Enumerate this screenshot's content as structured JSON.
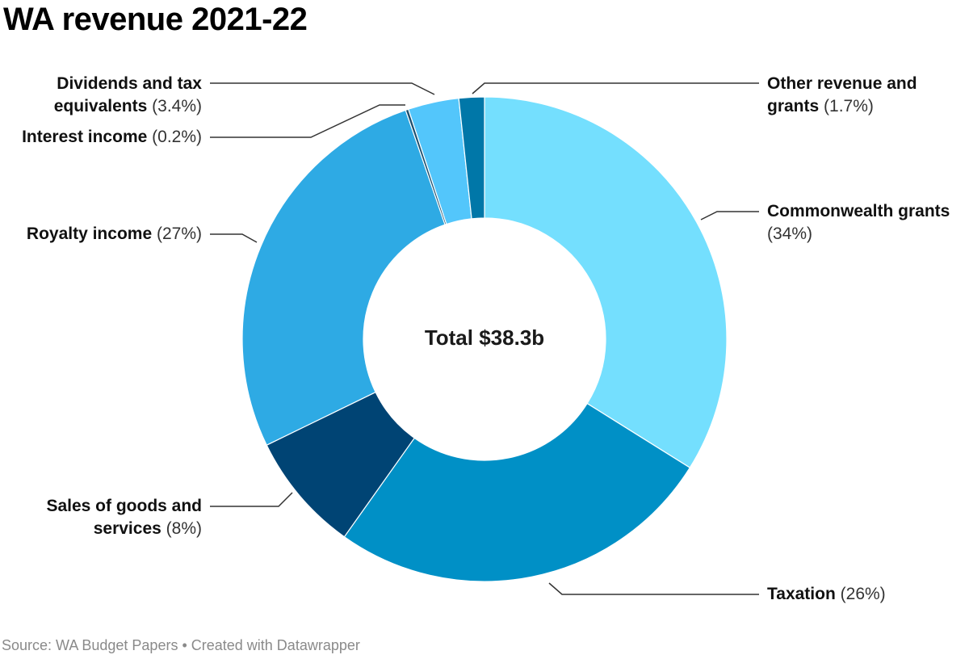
{
  "title": "WA revenue 2021-22",
  "footer": "Source: WA Budget Papers • Created with Datawrapper",
  "chart_data": {
    "type": "pie",
    "center_label": "Total $38.3b",
    "slices": [
      {
        "name": "Commonwealth grants",
        "value": 34,
        "pct_label": "(34%)",
        "color": "#74dffe"
      },
      {
        "name": "Taxation",
        "value": 26,
        "pct_label": "(26%)",
        "color": "#0090c6"
      },
      {
        "name": "Sales of goods and services",
        "value": 8,
        "pct_label": "(8%)",
        "color": "#004474"
      },
      {
        "name": "Royalty income",
        "value": 27,
        "pct_label": "(27%)",
        "color": "#2eaae4"
      },
      {
        "name": "Interest income",
        "value": 0.2,
        "pct_label": "(0.2%)",
        "color": "#1d4f6e"
      },
      {
        "name": "Dividends and tax equivalents",
        "value": 3.4,
        "pct_label": "(3.4%)",
        "color": "#53c6fb"
      },
      {
        "name": "Other revenue and grants",
        "value": 1.7,
        "pct_label": "(1.7%)",
        "color": "#0077a8"
      }
    ]
  }
}
